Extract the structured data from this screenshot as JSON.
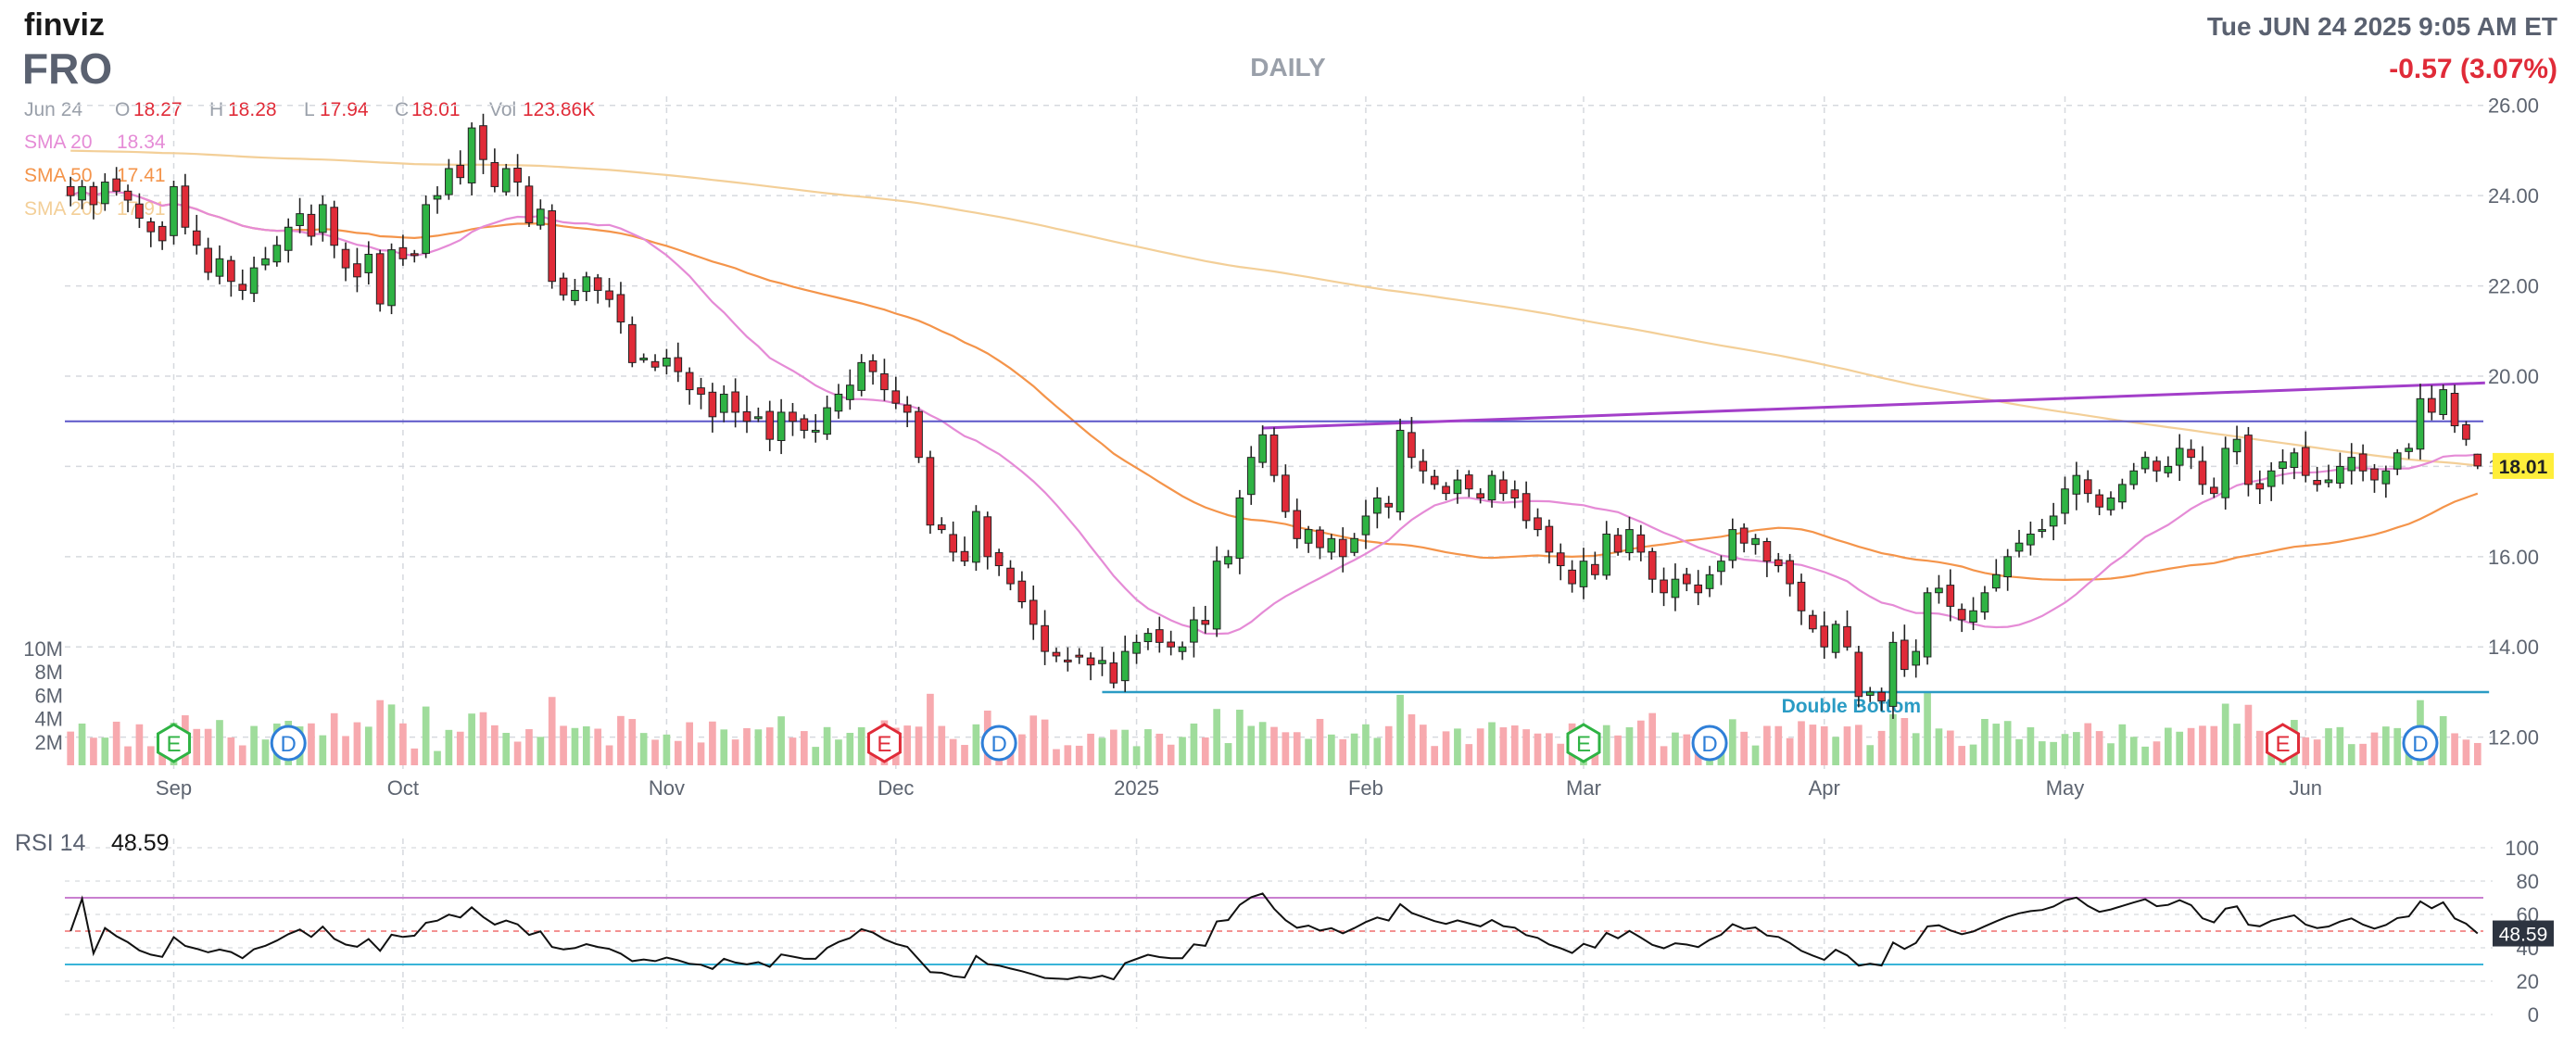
{
  "header": {
    "brand": "finviz",
    "ticker": "FRO",
    "timeframe": "DAILY",
    "datetime": "Tue JUN 24 2025 9:05 AM ET",
    "change": "-0.57 (3.07%)",
    "change_color": "#e02b38"
  },
  "ohlc": {
    "date": "Jun 24",
    "open_label": "O",
    "open": "18.27",
    "high_label": "H",
    "high": "18.28",
    "low_label": "L",
    "low": "17.94",
    "close_label": "C",
    "close": "18.01",
    "vol_label": "Vol",
    "vol": "123.86K"
  },
  "sma_legend": [
    {
      "label": "SMA 20",
      "value": "18.34",
      "color": "#e58bd6"
    },
    {
      "label": "SMA 50",
      "value": "17.41",
      "color": "#f4944a"
    },
    {
      "label": "SMA 200",
      "value": "17.91",
      "color": "#f3cf98"
    }
  ],
  "last_price_badge": "18.01",
  "colors": {
    "up": "#2fb344",
    "down": "#e02b38",
    "vol_up": "#9fdc9b",
    "vol_down": "#f7a9ae",
    "grid": "#d6d9de",
    "resistance": "#a33fc9",
    "support": "#2a9bc4",
    "horizontal": "#5b56c9",
    "rsi_line": "#111111",
    "rsi_70": "#c97fd0",
    "rsi_30": "#39b4d8",
    "rsi_50": "#ef6f6f"
  },
  "chart_data": [
    {
      "type": "candlestick",
      "title": "",
      "y_range": [
        11.5,
        26.2
      ],
      "y_ticks": [
        "12.00",
        "14.00",
        "16.00",
        "18.00",
        "20.00",
        "22.00",
        "24.00",
        "26.00"
      ],
      "x_labels": [
        "Sep",
        "Oct",
        "Nov",
        "Dec",
        "2025",
        "Feb",
        "Mar",
        "Apr",
        "May",
        "Jun"
      ],
      "close_series": [
        {
          "date": "2024-08-20",
          "close": 24.0
        },
        {
          "date": "2024-08-21",
          "close": 24.2
        },
        {
          "date": "2024-08-22",
          "close": 23.8
        },
        {
          "date": "2024-08-23",
          "close": 24.3
        },
        {
          "date": "2024-08-26",
          "close": 24.1
        },
        {
          "date": "2024-08-27",
          "close": 23.9
        },
        {
          "date": "2024-08-28",
          "close": 23.5
        },
        {
          "date": "2024-08-29",
          "close": 23.2
        },
        {
          "date": "2024-08-30",
          "close": 23.0
        },
        {
          "date": "2024-09-03",
          "close": 24.2
        },
        {
          "date": "2024-09-04",
          "close": 23.3
        },
        {
          "date": "2024-09-05",
          "close": 22.9
        },
        {
          "date": "2024-09-06",
          "close": 22.3
        },
        {
          "date": "2024-09-09",
          "close": 22.6
        },
        {
          "date": "2024-09-10",
          "close": 22.1
        },
        {
          "date": "2024-09-11",
          "close": 21.9
        },
        {
          "date": "2024-09-12",
          "close": 22.4
        },
        {
          "date": "2024-09-13",
          "close": 22.6
        },
        {
          "date": "2024-09-16",
          "close": 22.9
        },
        {
          "date": "2024-09-17",
          "close": 23.3
        },
        {
          "date": "2024-09-18",
          "close": 23.6
        },
        {
          "date": "2024-09-19",
          "close": 23.1
        },
        {
          "date": "2024-09-20",
          "close": 23.8
        },
        {
          "date": "2024-09-23",
          "close": 22.9
        },
        {
          "date": "2024-09-24",
          "close": 22.4
        },
        {
          "date": "2024-09-25",
          "close": 22.2
        },
        {
          "date": "2024-09-26",
          "close": 22.7
        },
        {
          "date": "2024-09-27",
          "close": 21.6
        },
        {
          "date": "2024-09-30",
          "close": 22.8
        },
        {
          "date": "2024-10-01",
          "close": 22.6
        },
        {
          "date": "2024-10-02",
          "close": 22.7
        },
        {
          "date": "2024-10-03",
          "close": 23.8
        },
        {
          "date": "2024-10-04",
          "close": 24.0
        },
        {
          "date": "2024-10-07",
          "close": 24.6
        },
        {
          "date": "2024-10-08",
          "close": 24.4
        },
        {
          "date": "2024-10-09",
          "close": 25.5
        },
        {
          "date": "2024-10-10",
          "close": 24.8
        },
        {
          "date": "2024-10-11",
          "close": 24.2
        },
        {
          "date": "2024-10-14",
          "close": 24.6
        },
        {
          "date": "2024-10-15",
          "close": 24.3
        },
        {
          "date": "2024-10-16",
          "close": 23.4
        },
        {
          "date": "2024-10-17",
          "close": 23.7
        },
        {
          "date": "2024-10-18",
          "close": 22.1
        },
        {
          "date": "2024-10-21",
          "close": 21.8
        },
        {
          "date": "2024-10-22",
          "close": 21.9
        },
        {
          "date": "2024-10-23",
          "close": 22.2
        },
        {
          "date": "2024-10-24",
          "close": 21.9
        },
        {
          "date": "2024-10-25",
          "close": 21.7
        },
        {
          "date": "2024-10-28",
          "close": 21.2
        },
        {
          "date": "2024-10-29",
          "close": 20.3
        },
        {
          "date": "2024-10-30",
          "close": 20.4
        },
        {
          "date": "2024-10-31",
          "close": 20.2
        },
        {
          "date": "2024-11-01",
          "close": 20.4
        },
        {
          "date": "2024-11-04",
          "close": 20.1
        },
        {
          "date": "2024-11-05",
          "close": 19.7
        },
        {
          "date": "2024-11-06",
          "close": 19.6
        },
        {
          "date": "2024-11-07",
          "close": 19.1
        },
        {
          "date": "2024-11-08",
          "close": 19.6
        },
        {
          "date": "2024-11-11",
          "close": 19.2
        },
        {
          "date": "2024-11-12",
          "close": 19.0
        },
        {
          "date": "2024-11-13",
          "close": 19.1
        },
        {
          "date": "2024-11-14",
          "close": 18.6
        },
        {
          "date": "2024-11-15",
          "close": 19.2
        },
        {
          "date": "2024-11-18",
          "close": 19.0
        },
        {
          "date": "2024-11-19",
          "close": 18.8
        },
        {
          "date": "2024-11-20",
          "close": 18.8
        },
        {
          "date": "2024-11-21",
          "close": 19.3
        },
        {
          "date": "2024-11-22",
          "close": 19.6
        },
        {
          "date": "2024-11-25",
          "close": 19.8
        },
        {
          "date": "2024-11-26",
          "close": 20.3
        },
        {
          "date": "2024-11-27",
          "close": 20.1
        },
        {
          "date": "2024-11-29",
          "close": 19.7
        },
        {
          "date": "2024-12-02",
          "close": 19.4
        },
        {
          "date": "2024-12-03",
          "close": 19.2
        },
        {
          "date": "2024-12-04",
          "close": 18.2
        },
        {
          "date": "2024-12-05",
          "close": 16.7
        },
        {
          "date": "2024-12-06",
          "close": 16.6
        },
        {
          "date": "2024-12-09",
          "close": 16.1
        },
        {
          "date": "2024-12-10",
          "close": 15.9
        },
        {
          "date": "2024-12-11",
          "close": 17.0
        },
        {
          "date": "2024-12-12",
          "close": 16.0
        },
        {
          "date": "2024-12-13",
          "close": 15.8
        },
        {
          "date": "2024-12-16",
          "close": 15.4
        },
        {
          "date": "2024-12-17",
          "close": 15.0
        },
        {
          "date": "2024-12-18",
          "close": 14.5
        },
        {
          "date": "2024-12-19",
          "close": 13.9
        },
        {
          "date": "2024-12-20",
          "close": 13.8
        },
        {
          "date": "2024-12-23",
          "close": 13.7
        },
        {
          "date": "2024-12-24",
          "close": 13.8
        },
        {
          "date": "2024-12-26",
          "close": 13.6
        },
        {
          "date": "2024-12-27",
          "close": 13.7
        },
        {
          "date": "2024-12-30",
          "close": 13.2
        },
        {
          "date": "2024-12-31",
          "close": 13.9
        },
        {
          "date": "2025-01-02",
          "close": 14.1
        },
        {
          "date": "2025-01-03",
          "close": 14.3
        },
        {
          "date": "2025-01-06",
          "close": 14.1
        },
        {
          "date": "2025-01-07",
          "close": 14.0
        },
        {
          "date": "2025-01-08",
          "close": 14.0
        },
        {
          "date": "2025-01-10",
          "close": 14.6
        },
        {
          "date": "2025-01-13",
          "close": 14.5
        },
        {
          "date": "2025-01-14",
          "close": 15.9
        },
        {
          "date": "2025-01-15",
          "close": 16.0
        },
        {
          "date": "2025-01-16",
          "close": 17.3
        },
        {
          "date": "2025-01-17",
          "close": 18.2
        },
        {
          "date": "2025-01-21",
          "close": 18.7
        },
        {
          "date": "2025-01-22",
          "close": 17.8
        },
        {
          "date": "2025-01-23",
          "close": 17.0
        },
        {
          "date": "2025-01-24",
          "close": 16.4
        },
        {
          "date": "2025-01-27",
          "close": 16.6
        },
        {
          "date": "2025-01-28",
          "close": 16.2
        },
        {
          "date": "2025-01-29",
          "close": 16.4
        },
        {
          "date": "2025-01-30",
          "close": 16.0
        },
        {
          "date": "2025-01-31",
          "close": 16.4
        },
        {
          "date": "2025-02-03",
          "close": 16.9
        },
        {
          "date": "2025-02-04",
          "close": 17.3
        },
        {
          "date": "2025-02-05",
          "close": 17.1
        },
        {
          "date": "2025-02-06",
          "close": 18.8
        },
        {
          "date": "2025-02-07",
          "close": 18.2
        },
        {
          "date": "2025-02-10",
          "close": 17.9
        },
        {
          "date": "2025-02-11",
          "close": 17.6
        },
        {
          "date": "2025-02-12",
          "close": 17.4
        },
        {
          "date": "2025-02-13",
          "close": 17.7
        },
        {
          "date": "2025-02-14",
          "close": 17.5
        },
        {
          "date": "2025-02-18",
          "close": 17.3
        },
        {
          "date": "2025-02-19",
          "close": 17.8
        },
        {
          "date": "2025-02-20",
          "close": 17.4
        },
        {
          "date": "2025-02-21",
          "close": 17.3
        },
        {
          "date": "2025-02-24",
          "close": 16.8
        },
        {
          "date": "2025-02-25",
          "close": 16.6
        },
        {
          "date": "2025-02-26",
          "close": 16.1
        },
        {
          "date": "2025-02-27",
          "close": 15.8
        },
        {
          "date": "2025-02-28",
          "close": 15.4
        },
        {
          "date": "2025-03-03",
          "close": 15.9
        },
        {
          "date": "2025-03-04",
          "close": 15.6
        },
        {
          "date": "2025-03-05",
          "close": 16.5
        },
        {
          "date": "2025-03-06",
          "close": 16.1
        },
        {
          "date": "2025-03-07",
          "close": 16.6
        },
        {
          "date": "2025-03-10",
          "close": 16.1
        },
        {
          "date": "2025-03-11",
          "close": 15.5
        },
        {
          "date": "2025-03-12",
          "close": 15.2
        },
        {
          "date": "2025-03-13",
          "close": 15.5
        },
        {
          "date": "2025-03-14",
          "close": 15.4
        },
        {
          "date": "2025-03-17",
          "close": 15.2
        },
        {
          "date": "2025-03-18",
          "close": 15.6
        },
        {
          "date": "2025-03-19",
          "close": 15.9
        },
        {
          "date": "2025-03-20",
          "close": 16.6
        },
        {
          "date": "2025-03-21",
          "close": 16.3
        },
        {
          "date": "2025-03-24",
          "close": 16.4
        },
        {
          "date": "2025-03-25",
          "close": 15.9
        },
        {
          "date": "2025-03-26",
          "close": 15.8
        },
        {
          "date": "2025-03-27",
          "close": 15.4
        },
        {
          "date": "2025-03-28",
          "close": 14.8
        },
        {
          "date": "2025-03-31",
          "close": 14.4
        },
        {
          "date": "2025-04-01",
          "close": 14.0
        },
        {
          "date": "2025-04-02",
          "close": 14.5
        },
        {
          "date": "2025-04-03",
          "close": 14.0
        },
        {
          "date": "2025-04-04",
          "close": 12.9
        },
        {
          "date": "2025-04-07",
          "close": 13.0
        },
        {
          "date": "2025-04-08",
          "close": 12.8
        },
        {
          "date": "2025-04-09",
          "close": 14.1
        },
        {
          "date": "2025-04-10",
          "close": 13.5
        },
        {
          "date": "2025-04-11",
          "close": 13.9
        },
        {
          "date": "2025-04-14",
          "close": 15.2
        },
        {
          "date": "2025-04-15",
          "close": 15.3
        },
        {
          "date": "2025-04-16",
          "close": 14.9
        },
        {
          "date": "2025-04-17",
          "close": 14.6
        },
        {
          "date": "2025-04-21",
          "close": 14.8
        },
        {
          "date": "2025-04-22",
          "close": 15.2
        },
        {
          "date": "2025-04-23",
          "close": 15.6
        },
        {
          "date": "2025-04-24",
          "close": 16.0
        },
        {
          "date": "2025-04-25",
          "close": 16.3
        },
        {
          "date": "2025-04-28",
          "close": 16.5
        },
        {
          "date": "2025-04-29",
          "close": 16.6
        },
        {
          "date": "2025-04-30",
          "close": 16.9
        },
        {
          "date": "2025-05-01",
          "close": 17.5
        },
        {
          "date": "2025-05-02",
          "close": 17.8
        },
        {
          "date": "2025-05-05",
          "close": 17.4
        },
        {
          "date": "2025-05-06",
          "close": 17.1
        },
        {
          "date": "2025-05-07",
          "close": 17.3
        },
        {
          "date": "2025-05-08",
          "close": 17.6
        },
        {
          "date": "2025-05-09",
          "close": 17.9
        },
        {
          "date": "2025-05-12",
          "close": 18.2
        },
        {
          "date": "2025-05-13",
          "close": 17.9
        },
        {
          "date": "2025-05-14",
          "close": 18.0
        },
        {
          "date": "2025-05-15",
          "close": 18.4
        },
        {
          "date": "2025-05-16",
          "close": 18.2
        },
        {
          "date": "2025-05-19",
          "close": 17.6
        },
        {
          "date": "2025-05-20",
          "close": 17.4
        },
        {
          "date": "2025-05-21",
          "close": 18.4
        },
        {
          "date": "2025-05-22",
          "close": 18.6
        },
        {
          "date": "2025-05-23",
          "close": 17.6
        },
        {
          "date": "2025-05-27",
          "close": 17.5
        },
        {
          "date": "2025-05-28",
          "close": 17.9
        },
        {
          "date": "2025-05-29",
          "close": 18.1
        },
        {
          "date": "2025-05-30",
          "close": 18.3
        },
        {
          "date": "2025-06-02",
          "close": 17.8
        },
        {
          "date": "2025-06-03",
          "close": 17.6
        },
        {
          "date": "2025-06-04",
          "close": 17.7
        },
        {
          "date": "2025-06-05",
          "close": 18.0
        },
        {
          "date": "2025-06-06",
          "close": 18.2
        },
        {
          "date": "2025-06-09",
          "close": 17.9
        },
        {
          "date": "2025-06-10",
          "close": 17.7
        },
        {
          "date": "2025-06-11",
          "close": 17.9
        },
        {
          "date": "2025-06-12",
          "close": 18.3
        },
        {
          "date": "2025-06-13",
          "close": 18.4
        },
        {
          "date": "2025-06-16",
          "close": 19.5
        },
        {
          "date": "2025-06-17",
          "close": 19.2
        },
        {
          "date": "2025-06-18",
          "close": 19.7
        },
        {
          "date": "2025-06-20",
          "close": 18.9
        },
        {
          "date": "2025-06-23",
          "close": 18.6
        },
        {
          "date": "2025-06-24",
          "close": 18.01
        }
      ],
      "annotations": [
        {
          "label": "Double Bottom",
          "level": 13.0,
          "from": "2024-12-30",
          "to": "2025-06-24"
        }
      ],
      "horizontal_line": 19.0,
      "resistance_line": {
        "from": {
          "date": "2025-01-21",
          "price": 18.85
        },
        "to": {
          "date": "2025-06-24",
          "price": 19.85
        }
      },
      "earnings_markers": [
        {
          "symbol": "E",
          "date": "2024-09-03",
          "result": "beat"
        },
        {
          "symbol": "E",
          "date": "2024-11-29",
          "result": "miss"
        },
        {
          "symbol": "E",
          "date": "2025-03-03",
          "result": "beat"
        },
        {
          "symbol": "E",
          "date": "2025-05-29",
          "result": "miss"
        }
      ],
      "dividend_markers": [
        {
          "symbol": "D",
          "date": "2024-09-17"
        },
        {
          "symbol": "D",
          "date": "2024-12-13"
        },
        {
          "symbol": "D",
          "date": "2025-03-18"
        },
        {
          "symbol": "D",
          "date": "2025-06-16"
        }
      ]
    },
    {
      "type": "bar",
      "title": "Volume",
      "y_ticks": [
        "2M",
        "4M",
        "6M",
        "8M",
        "10M"
      ],
      "y_range": [
        0,
        10
      ]
    },
    {
      "type": "line",
      "title": "RSI 14",
      "value": "48.59",
      "y_range": [
        0,
        100
      ],
      "y_ticks": [
        "0",
        "20",
        "40",
        "60",
        "80",
        "100"
      ],
      "levels": [
        30,
        50,
        70
      ]
    }
  ]
}
